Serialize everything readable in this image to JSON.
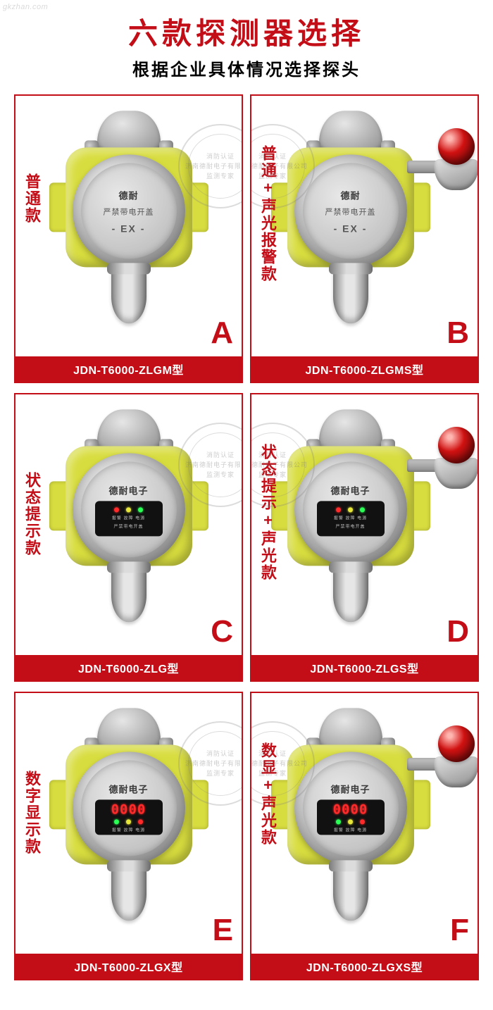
{
  "header": {
    "title": "六款探测器选择",
    "subtitle": "根据企业具体情况选择探头",
    "title_color": "#c30d17",
    "subtitle_color": "#000000"
  },
  "watermark": {
    "corner": "gkzhan.com",
    "stamp_line1": "消防认证",
    "stamp_line2": "济南德耐电子有限公司",
    "stamp_line3": "监测专家"
  },
  "device": {
    "brand_a": "德耐",
    "brand_b": "德耐电子",
    "warn_text": "严禁带电开盖",
    "ex_text": "- EX -",
    "digits": "0000",
    "panel_small": "报警 故障 电源"
  },
  "products": [
    {
      "letter": "A",
      "variant": "普通款",
      "model": "JDN-T6000-ZLGM型",
      "face": "plain",
      "beacon": false,
      "stamp": "right"
    },
    {
      "letter": "B",
      "variant": "普通+声光报警款",
      "model": "JDN-T6000-ZLGMS型",
      "face": "plain",
      "beacon": true,
      "stamp": "left"
    },
    {
      "letter": "C",
      "variant": "状态提示款",
      "model": "JDN-T6000-ZLG型",
      "face": "status",
      "beacon": false,
      "stamp": "right"
    },
    {
      "letter": "D",
      "variant": "状态提示+声光款",
      "model": "JDN-T6000-ZLGS型",
      "face": "status",
      "beacon": true,
      "stamp": "left"
    },
    {
      "letter": "E",
      "variant": "数字显示款",
      "model": "JDN-T6000-ZLGX型",
      "face": "digital",
      "beacon": false,
      "stamp": "right"
    },
    {
      "letter": "F",
      "variant": "数显+声光款",
      "model": "JDN-T6000-ZLGXS型",
      "face": "digital",
      "beacon": true,
      "stamp": "left"
    }
  ],
  "style": {
    "accent": "#c30d17",
    "housing": "#d8dd3f",
    "card_border": "#c30d17",
    "label_bg": "#c30d17",
    "label_fg": "#ffffff",
    "page_bg": "#ffffff"
  }
}
